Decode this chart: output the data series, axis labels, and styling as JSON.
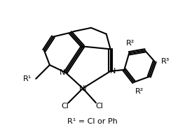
{
  "bg_color": "#ffffff",
  "text_color": "#000000",
  "line_color": "#000000",
  "line_width": 1.5,
  "label_R1": "R¹",
  "label_R2": "R²",
  "label_R3": "R³",
  "label_N": "N",
  "label_Ni": "Ni",
  "label_Cl": "Cl",
  "label_eq": "R¹ = Cl or Ph",
  "figsize": [
    2.64,
    1.89
  ],
  "dpi": 100
}
